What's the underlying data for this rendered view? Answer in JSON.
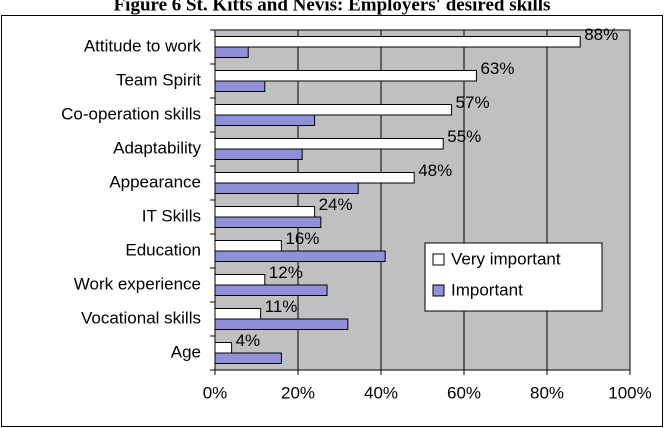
{
  "chart_data": {
    "type": "bar",
    "orientation": "horizontal",
    "title": "Figure 6 St. Kitts and Nevis: Employers' desired skills",
    "categories": [
      "Attitude to work",
      "Team Spirit",
      "Co-operation skills",
      "Adaptability",
      "Appearance",
      "IT Skills",
      "Education",
      "Work experience",
      "Vocational skills",
      "Age"
    ],
    "series": [
      {
        "name": "Very important",
        "color": "#ffffff",
        "values": [
          88,
          63,
          57,
          55,
          48,
          24,
          16,
          12,
          11,
          4
        ],
        "value_labels": [
          "88%",
          "63%",
          "57%",
          "55%",
          "48%",
          "24%",
          "16%",
          "12%",
          "11%",
          "4%"
        ]
      },
      {
        "name": "Important",
        "color": "#9090d8",
        "values": [
          8,
          12,
          24,
          21,
          34.5,
          25.5,
          41,
          27,
          32,
          16
        ]
      }
    ],
    "xlim": [
      0,
      100
    ],
    "xticks": [
      {
        "value": 0,
        "label": "0%"
      },
      {
        "value": 20,
        "label": "20%"
      },
      {
        "value": 40,
        "label": "40%"
      },
      {
        "value": 60,
        "label": "60%"
      },
      {
        "value": 80,
        "label": "80%"
      },
      {
        "value": 100,
        "label": "100%"
      }
    ],
    "grid": true,
    "plot_background": "#c0c0c0"
  }
}
